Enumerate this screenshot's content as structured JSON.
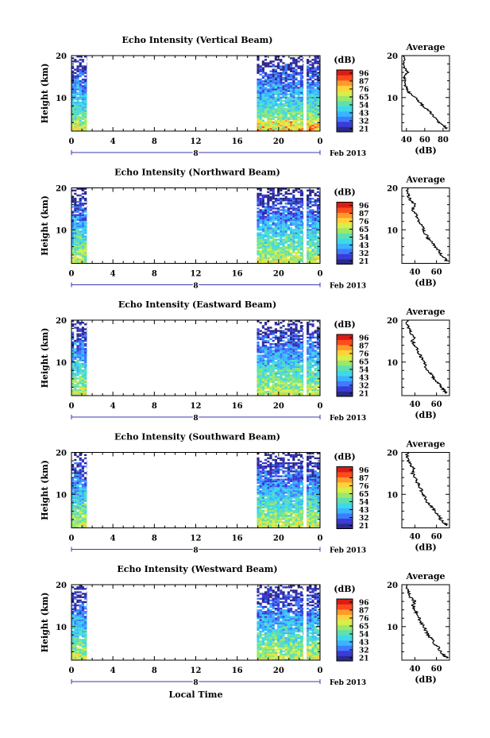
{
  "colors": {
    "colorbar": [
      "#2a2a8c",
      "#3b3bd6",
      "#3f7bff",
      "#39b4ff",
      "#3fd8e8",
      "#5fe0b0",
      "#9be86a",
      "#d8ee4a",
      "#ffd23a",
      "#ff9a2a",
      "#ff4a1e",
      "#d81e14"
    ]
  },
  "chart_data": [
    {
      "type": "heatmap",
      "title": "Echo Intensity (Vertical Beam)",
      "ylabel": "Height (km)",
      "ylim": [
        2,
        20
      ],
      "yticks": [
        "10",
        "20"
      ],
      "xticks": [
        "0",
        "4",
        "8",
        "12",
        "16",
        "20",
        "0"
      ],
      "xlim": [
        0,
        24
      ],
      "date_day": "8",
      "date_label": "Feb 2013",
      "colorbar_label": "(dB)",
      "colorbar_ticks": [
        "96",
        "87",
        "76",
        "65",
        "54",
        "43",
        "32",
        "21"
      ],
      "data_segments": [
        [
          0,
          1.5
        ],
        [
          17.9,
          22.4
        ],
        [
          22.7,
          24
        ]
      ],
      "profile": {
        "title": "Average",
        "xlabel": "(dB)",
        "xticks": [
          "40",
          "60",
          "80"
        ],
        "xlim": [
          35,
          87
        ],
        "yticks": [
          "10",
          "20"
        ],
        "points": [
          [
            2.5,
            84
          ],
          [
            3,
            82
          ],
          [
            4,
            76
          ],
          [
            5,
            72
          ],
          [
            6,
            68
          ],
          [
            7,
            64
          ],
          [
            8,
            58
          ],
          [
            9,
            54
          ],
          [
            10,
            50
          ],
          [
            11,
            44
          ],
          [
            12,
            40
          ],
          [
            13,
            39
          ],
          [
            14,
            38
          ],
          [
            15,
            37
          ],
          [
            16,
            41
          ],
          [
            17,
            38
          ],
          [
            18,
            38
          ],
          [
            19,
            37
          ],
          [
            20,
            38
          ]
        ]
      }
    },
    {
      "type": "heatmap",
      "title": "Echo Intensity (Northward Beam)",
      "ylabel": "Height (km)",
      "ylim": [
        2,
        20
      ],
      "yticks": [
        "10",
        "20"
      ],
      "xticks": [
        "0",
        "4",
        "8",
        "12",
        "16",
        "20",
        "0"
      ],
      "xlim": [
        0,
        24
      ],
      "date_day": "8",
      "date_label": "Feb 2013",
      "colorbar_label": "(dB)",
      "colorbar_ticks": [
        "96",
        "87",
        "76",
        "65",
        "54",
        "43",
        "32",
        "21"
      ],
      "data_segments": [
        [
          0,
          1.5
        ],
        [
          17.9,
          22.4
        ],
        [
          22.7,
          24
        ]
      ],
      "profile": {
        "title": "Average",
        "xlabel": "(dB)",
        "xticks": [
          "40",
          "60"
        ],
        "xlim": [
          28,
          72
        ],
        "yticks": [
          "10",
          "20"
        ],
        "points": [
          [
            2.5,
            70
          ],
          [
            3,
            68
          ],
          [
            4,
            64
          ],
          [
            5,
            62
          ],
          [
            6,
            58
          ],
          [
            7,
            56
          ],
          [
            8,
            52
          ],
          [
            9,
            50
          ],
          [
            10,
            48
          ],
          [
            11,
            46
          ],
          [
            12,
            44
          ],
          [
            13,
            42
          ],
          [
            14,
            40
          ],
          [
            15,
            38
          ],
          [
            16,
            40
          ],
          [
            17,
            36
          ],
          [
            18,
            34
          ],
          [
            19,
            33
          ],
          [
            20,
            33
          ]
        ]
      }
    },
    {
      "type": "heatmap",
      "title": "Echo Intensity (Eastward Beam)",
      "ylabel": "Height (km)",
      "ylim": [
        2,
        20
      ],
      "yticks": [
        "10",
        "20"
      ],
      "xticks": [
        "0",
        "4",
        "8",
        "12",
        "16",
        "20",
        "0"
      ],
      "xlim": [
        0,
        24
      ],
      "date_day": "8",
      "date_label": "Feb 2013",
      "colorbar_label": "(dB)",
      "colorbar_ticks": [
        "96",
        "87",
        "76",
        "65",
        "54",
        "43",
        "32",
        "21"
      ],
      "data_segments": [
        [
          0,
          1.5
        ],
        [
          17.9,
          22.4
        ],
        [
          22.7,
          24
        ]
      ],
      "profile": {
        "title": "Average",
        "xlabel": "(dB)",
        "xticks": [
          "40",
          "60"
        ],
        "xlim": [
          28,
          72
        ],
        "yticks": [
          "10",
          "20"
        ],
        "points": [
          [
            2.5,
            70
          ],
          [
            3,
            68
          ],
          [
            4,
            64
          ],
          [
            5,
            62
          ],
          [
            6,
            58
          ],
          [
            7,
            56
          ],
          [
            8,
            52
          ],
          [
            9,
            50
          ],
          [
            10,
            48
          ],
          [
            11,
            46
          ],
          [
            12,
            44
          ],
          [
            13,
            42
          ],
          [
            14,
            40
          ],
          [
            15,
            38
          ],
          [
            16,
            39
          ],
          [
            17,
            36
          ],
          [
            18,
            34
          ],
          [
            19,
            33
          ],
          [
            20,
            33
          ]
        ]
      }
    },
    {
      "type": "heatmap",
      "title": "Echo Intensity (Southward Beam)",
      "ylabel": "Height (km)",
      "ylim": [
        2,
        20
      ],
      "yticks": [
        "10",
        "20"
      ],
      "xticks": [
        "0",
        "4",
        "8",
        "12",
        "16",
        "20",
        "0"
      ],
      "xlim": [
        0,
        24
      ],
      "date_day": "8",
      "date_label": "Feb 2013",
      "colorbar_label": "(dB)",
      "colorbar_ticks": [
        "96",
        "87",
        "76",
        "65",
        "54",
        "43",
        "32",
        "21"
      ],
      "data_segments": [
        [
          0,
          1.5
        ],
        [
          17.9,
          22.4
        ],
        [
          22.7,
          24
        ]
      ],
      "profile": {
        "title": "Average",
        "xlabel": "(dB)",
        "xticks": [
          "40",
          "60"
        ],
        "xlim": [
          28,
          72
        ],
        "yticks": [
          "10",
          "20"
        ],
        "points": [
          [
            2.5,
            70
          ],
          [
            3,
            68
          ],
          [
            4,
            64
          ],
          [
            5,
            62
          ],
          [
            6,
            58
          ],
          [
            7,
            56
          ],
          [
            8,
            52
          ],
          [
            9,
            50
          ],
          [
            10,
            48
          ],
          [
            11,
            46
          ],
          [
            12,
            44
          ],
          [
            13,
            42
          ],
          [
            14,
            40
          ],
          [
            15,
            38
          ],
          [
            16,
            40
          ],
          [
            17,
            36
          ],
          [
            18,
            34
          ],
          [
            19,
            33
          ],
          [
            20,
            33
          ]
        ]
      }
    },
    {
      "type": "heatmap",
      "title": "Echo Intensity (Westward Beam)",
      "ylabel": "Height (km)",
      "ylim": [
        2,
        20
      ],
      "yticks": [
        "10",
        "20"
      ],
      "xticks": [
        "0",
        "4",
        "8",
        "12",
        "16",
        "20",
        "0"
      ],
      "xlim": [
        0,
        24
      ],
      "date_day": "8",
      "date_label": "Feb 2013",
      "xlabel": "Local Time",
      "colorbar_label": "(dB)",
      "colorbar_ticks": [
        "96",
        "87",
        "76",
        "65",
        "54",
        "43",
        "32",
        "21"
      ],
      "data_segments": [
        [
          0,
          1.5
        ],
        [
          17.9,
          22.4
        ],
        [
          22.7,
          24
        ]
      ],
      "profile": {
        "title": "Average",
        "xlabel": "(dB)",
        "xticks": [
          "40",
          "60"
        ],
        "xlim": [
          28,
          72
        ],
        "yticks": [
          "10",
          "20"
        ],
        "points": [
          [
            2.5,
            70
          ],
          [
            3,
            68
          ],
          [
            4,
            64
          ],
          [
            5,
            62
          ],
          [
            6,
            58
          ],
          [
            7,
            56
          ],
          [
            8,
            52
          ],
          [
            9,
            50
          ],
          [
            10,
            48
          ],
          [
            11,
            46
          ],
          [
            12,
            44
          ],
          [
            13,
            42
          ],
          [
            14,
            40
          ],
          [
            15,
            38
          ],
          [
            16,
            40
          ],
          [
            17,
            36
          ],
          [
            18,
            34
          ],
          [
            19,
            33
          ],
          [
            20,
            33
          ]
        ]
      }
    }
  ]
}
